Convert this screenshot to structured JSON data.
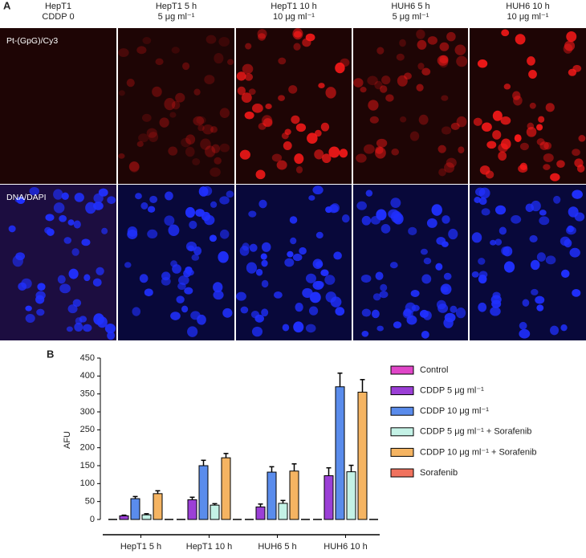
{
  "panel_a": {
    "label": "A",
    "columns": [
      {
        "header": [
          "HepT1",
          "CDDP 0"
        ]
      },
      {
        "header": [
          "HepT1 5 h",
          "5 μg ml⁻¹"
        ]
      },
      {
        "header": [
          "HepT1 10 h",
          "10 μg ml⁻¹"
        ]
      },
      {
        "header": [
          "HUH6 5 h",
          "5 μg ml⁻¹"
        ]
      },
      {
        "header": [
          "HUH6 10 h",
          "10 μg ml⁻¹"
        ]
      }
    ],
    "rows": [
      "Pt-(GpG)/Cy3",
      "DNA/DAPI"
    ]
  },
  "chart_data": {
    "type": "bar",
    "label": "B",
    "ylabel": "AFU",
    "categories": [
      "HepT1 5 h",
      "HepT1 10 h",
      "HUH6 5 h",
      "HUH6 10 h"
    ],
    "ylim": [
      0,
      450
    ],
    "yticks": [
      0,
      50,
      100,
      150,
      200,
      250,
      300,
      350,
      400,
      450
    ],
    "series": [
      {
        "name": "Control",
        "color": "#e046c8",
        "values": [
          0,
          0,
          0,
          0
        ],
        "errors": [
          0,
          0,
          0,
          0
        ]
      },
      {
        "name": "CDDP 5 μg ml⁻¹",
        "color": "#9b3fd6",
        "values": [
          10,
          55,
          35,
          122
        ],
        "errors": [
          2,
          7,
          8,
          22
        ]
      },
      {
        "name": "CDDP 10 μg ml⁻¹",
        "color": "#5a8cec",
        "values": [
          58,
          150,
          132,
          370
        ],
        "errors": [
          6,
          15,
          15,
          38
        ]
      },
      {
        "name": "CDDP 5 μg ml⁻¹ + Sorafenib",
        "color": "#c4f2e6",
        "values": [
          13,
          40,
          45,
          133
        ],
        "errors": [
          3,
          4,
          8,
          18
        ]
      },
      {
        "name": "CDDP 10 μg ml⁻¹ + Sorafenib",
        "color": "#f5b462",
        "values": [
          72,
          172,
          135,
          355
        ],
        "errors": [
          8,
          12,
          20,
          35
        ]
      },
      {
        "name": "Sorafenib",
        "color": "#f0725e",
        "values": [
          0,
          0,
          0,
          0
        ],
        "errors": [
          0,
          0,
          0,
          0
        ]
      }
    ]
  }
}
